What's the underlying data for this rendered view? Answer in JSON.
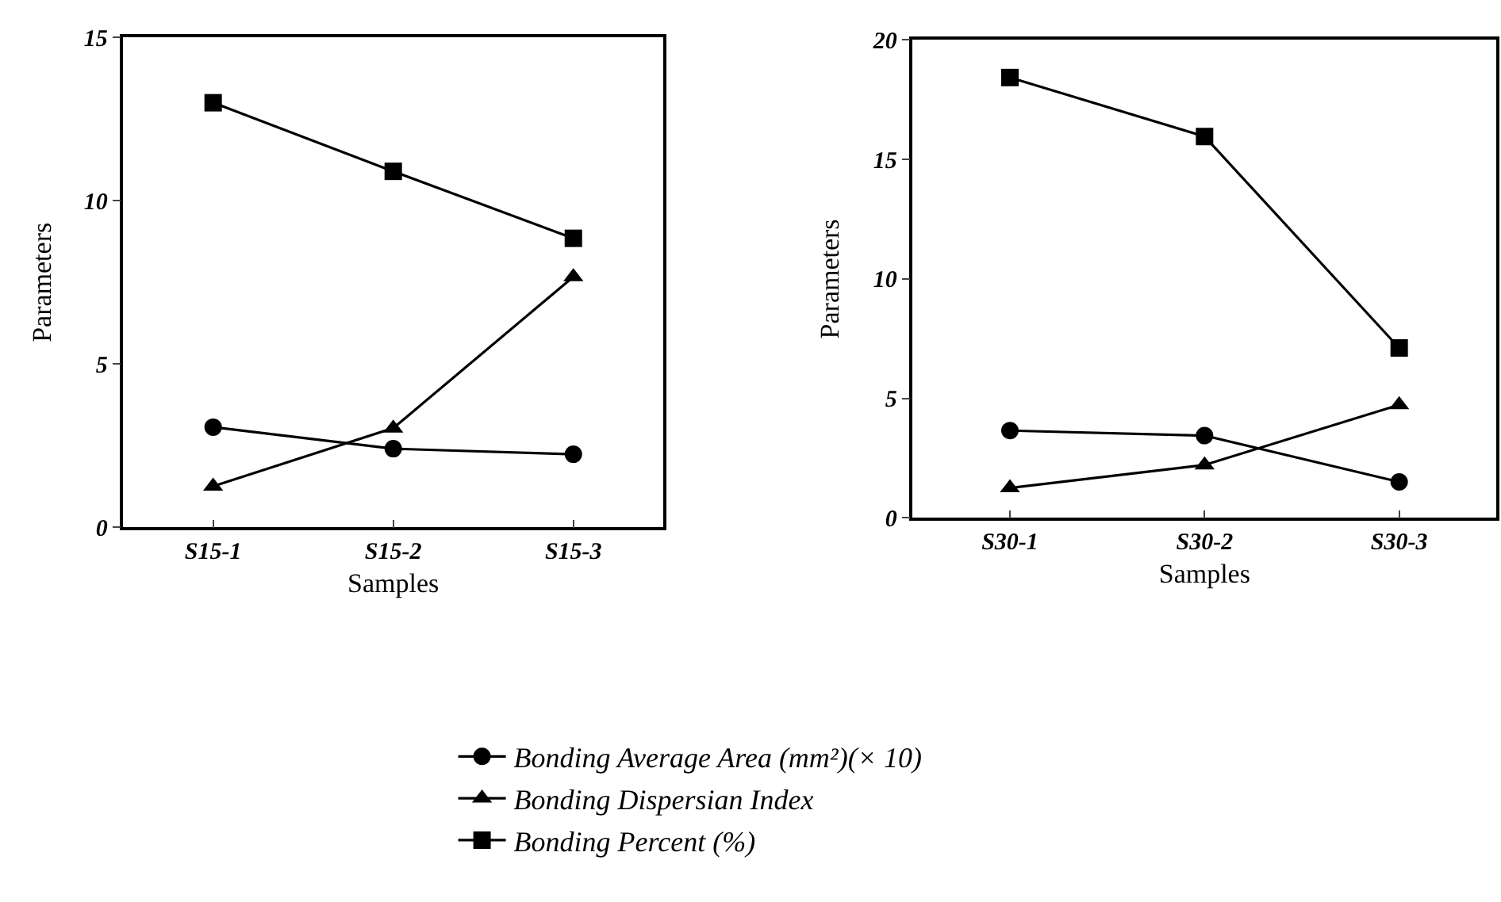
{
  "chart_data": [
    {
      "type": "line",
      "categories": [
        "S15-1",
        "S15-2",
        "S15-3"
      ],
      "xlabel": "Samples",
      "ylabel": "Parameters",
      "ylim": [
        0,
        15
      ],
      "yticks": [
        0,
        5,
        10,
        15
      ],
      "legend": "bottom",
      "series": [
        {
          "name": "Bonding Average Area (mm²)(× 10)",
          "color": "#000000",
          "marker": "circle",
          "values": [
            3.07,
            2.41,
            2.24
          ]
        },
        {
          "name": "Bonding Dispersian Index",
          "color": "#000000",
          "marker": "triangle",
          "values": [
            1.26,
            3.04,
            7.67
          ]
        },
        {
          "name": "Bonding Percent (%)",
          "color": "#000000",
          "marker": "square",
          "values": [
            13.0,
            10.9,
            8.85
          ]
        }
      ]
    },
    {
      "type": "line",
      "categories": [
        "S30-1",
        "S30-2",
        "S30-3"
      ],
      "xlabel": "Samples",
      "ylabel": "Parameters",
      "ylim": [
        0,
        20
      ],
      "yticks": [
        0,
        5,
        10,
        15,
        20
      ],
      "legend": "bottom",
      "series": [
        {
          "name": "Bonding Average Area (mm²)(× 10)",
          "color": "#000000",
          "marker": "circle",
          "values": [
            3.65,
            3.44,
            1.5
          ]
        },
        {
          "name": "Bonding Dispersian Index",
          "color": "#000000",
          "marker": "triangle",
          "values": [
            1.25,
            2.21,
            4.73
          ]
        },
        {
          "name": "Bonding Percent (%)",
          "color": "#000000",
          "marker": "square",
          "values": [
            18.43,
            15.96,
            7.11
          ]
        }
      ]
    }
  ]
}
